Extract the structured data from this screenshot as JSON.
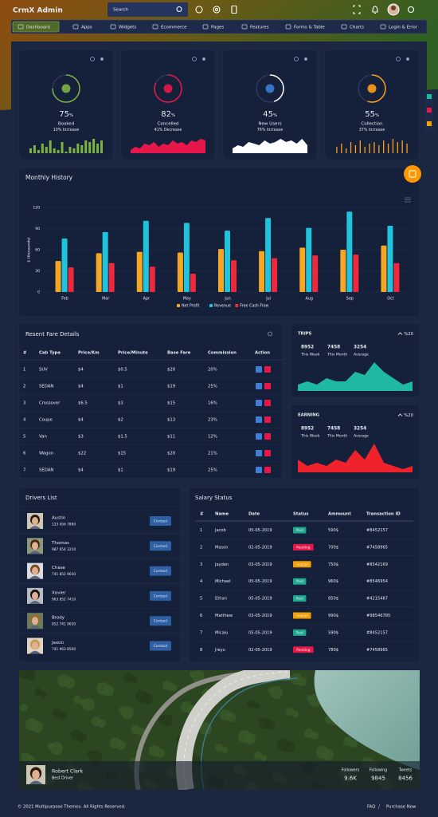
{
  "header": {
    "brand": "CrmX Admin",
    "search_placeholder": "Search"
  },
  "nav": [
    "Dashboard",
    "Apps",
    "Widgets",
    "Ecommerce",
    "Pages",
    "Features",
    "Forms & Table",
    "Charts",
    "Login & Error"
  ],
  "stats": [
    {
      "value": 75,
      "unit": "%",
      "label": "Booked",
      "change": "10% Increase",
      "color": "#7cb342",
      "spark_type": "bar",
      "spark": [
        3,
        5,
        2,
        6,
        4,
        8,
        3,
        2,
        7,
        1,
        4,
        3,
        6,
        5,
        8,
        7,
        9,
        6,
        8
      ]
    },
    {
      "value": 82,
      "unit": "%",
      "label": "Cancelled",
      "change": "41% Decrease",
      "color": "#e8174a",
      "spark_type": "area",
      "spark": [
        2,
        4,
        3,
        6,
        5,
        7,
        4,
        6,
        5,
        8,
        6,
        7,
        5,
        8,
        7,
        9,
        8
      ]
    },
    {
      "value": 45,
      "unit": "%",
      "label": "New Users",
      "change": "76% Increase",
      "color": "#ffffff",
      "spark_type": "area",
      "spark": [
        3,
        5,
        4,
        7,
        6,
        5,
        8,
        6,
        7,
        9,
        7,
        8,
        6,
        9,
        5
      ]
    },
    {
      "value": 55,
      "unit": "%",
      "label": "Collection",
      "change": "37% Increase",
      "color": "#ff9f1c",
      "spark_type": "thin",
      "spark": [
        4,
        6,
        3,
        7,
        5,
        8,
        4,
        6,
        7,
        5,
        8,
        6,
        9,
        7,
        8,
        6
      ]
    }
  ],
  "chart_data": {
    "type": "bar",
    "title": "Monthly History",
    "y_label": "$ (thousands)",
    "categories": [
      "Feb",
      "Mar",
      "Apr",
      "May",
      "Jun",
      "Jul",
      "Aug",
      "Sep",
      "Oct"
    ],
    "series": [
      {
        "name": "Net Profit",
        "color": "#f5a623",
        "values": [
          44,
          55,
          57,
          56,
          61,
          58,
          63,
          60,
          66
        ]
      },
      {
        "name": "Revenue",
        "color": "#1fc4dc",
        "values": [
          76,
          85,
          101,
          98,
          87,
          105,
          91,
          114,
          94
        ]
      },
      {
        "name": "Free Cash Flow",
        "color": "#f0283c",
        "values": [
          35,
          41,
          36,
          26,
          45,
          48,
          52,
          53,
          41
        ]
      }
    ],
    "ylim": [
      0,
      120
    ],
    "yticks": [
      0,
      30,
      60,
      90,
      120
    ],
    "grid": true
  },
  "fare_table": {
    "title": "Resent Fare Details",
    "columns": [
      "#",
      "Cab Type",
      "Price/Km",
      "Price/Minute",
      "Base Fare",
      "Commission",
      "Action"
    ],
    "rows": [
      [
        "1",
        "SUV",
        "$4",
        "$0.5",
        "$20",
        "20%"
      ],
      [
        "2",
        "SEDAN",
        "$4",
        "$1",
        "$19",
        "25%"
      ],
      [
        "3",
        "Crossover",
        "$6.5",
        "$3",
        "$15",
        "16%"
      ],
      [
        "4",
        "Coupe",
        "$4",
        "$2",
        "$13",
        "23%"
      ],
      [
        "5",
        "Van",
        "$3",
        "$1.5",
        "$11",
        "12%"
      ],
      [
        "6",
        "Wagon",
        "$22",
        "$15",
        "$20",
        "21%"
      ],
      [
        "7",
        "SEDAN",
        "$4",
        "$1",
        "$19",
        "25%"
      ]
    ]
  },
  "trips": {
    "title": "TRIPS",
    "change": "%20",
    "color": "#1fb8a0",
    "stats": [
      {
        "value": 8952,
        "label": "This Week"
      },
      {
        "value": 7458,
        "label": "This Month"
      },
      {
        "value": 3254,
        "label": "Average"
      }
    ],
    "values": [
      2,
      3,
      2,
      4,
      3,
      3,
      6,
      5,
      9,
      6,
      4,
      2,
      3
    ]
  },
  "earning": {
    "title": "EARNING",
    "change": "%20",
    "color": "#f0232d",
    "stats": [
      {
        "value": 8952,
        "label": "This Week"
      },
      {
        "value": 7458,
        "label": "This Month"
      },
      {
        "value": 3254,
        "label": "Average"
      }
    ],
    "values": [
      4,
      2,
      3,
      2,
      4,
      3,
      7,
      4,
      9,
      3,
      2,
      1,
      2
    ]
  },
  "drivers": {
    "title": "Drivers List",
    "button": "Contact",
    "items": [
      {
        "name": "Austin",
        "phone": "123 456 7890"
      },
      {
        "name": "Thomas",
        "phone": "987 654 3210"
      },
      {
        "name": "Chase",
        "phone": "741 852 9630"
      },
      {
        "name": "Xavier",
        "phone": "963 852 7410"
      },
      {
        "name": "Brody",
        "phone": "852 741 9630"
      },
      {
        "name": "Jaxon",
        "phone": "741 963 8500"
      }
    ]
  },
  "salary": {
    "title": "Salary Status",
    "columns": [
      "#",
      "Name",
      "Date",
      "Status",
      "Ammount",
      "Transaction ID"
    ],
    "status_colors": {
      "Paid": "#1fa890",
      "Pending": "#e8174a",
      "Unpaid": "#f5a000"
    },
    "rows": [
      [
        "1",
        "Jacob",
        "05-05-2019",
        "Paid",
        "590$",
        "#8452157"
      ],
      [
        "2",
        "Mason",
        "02-05-2019",
        "Pending",
        "700$",
        "#7458965"
      ],
      [
        "3",
        "Jayden",
        "03-05-2019",
        "Unpaid",
        "750$",
        "#8542169"
      ],
      [
        "4",
        "Michael",
        "05-05-2019",
        "Paid",
        "960$",
        "#8546954"
      ],
      [
        "5",
        "Ethan",
        "05-05-2019",
        "Paid",
        "850$",
        "#4215487"
      ],
      [
        "6",
        "Matthew",
        "03-05-2019",
        "Unpaid",
        "990$",
        "#98546785"
      ],
      [
        "7",
        "Micaiu",
        "05-05-2019",
        "Paid",
        "590$",
        "#8452157"
      ],
      [
        "8",
        "Jreyu",
        "02-05-2019",
        "Pending",
        "780$",
        "#7458965"
      ]
    ]
  },
  "profile": {
    "name": "Robert Clark",
    "role": "Best Driver",
    "stats": [
      {
        "label": "Followers",
        "value": "9.6K"
      },
      {
        "label": "Following",
        "value": 9845
      },
      {
        "label": "Tweets",
        "value": 8456
      }
    ]
  },
  "footer": {
    "copyright": "© 2021 Multipurpose Themes. All Rights Reserved.",
    "links": [
      "FAQ",
      "Purchase Now"
    ]
  }
}
